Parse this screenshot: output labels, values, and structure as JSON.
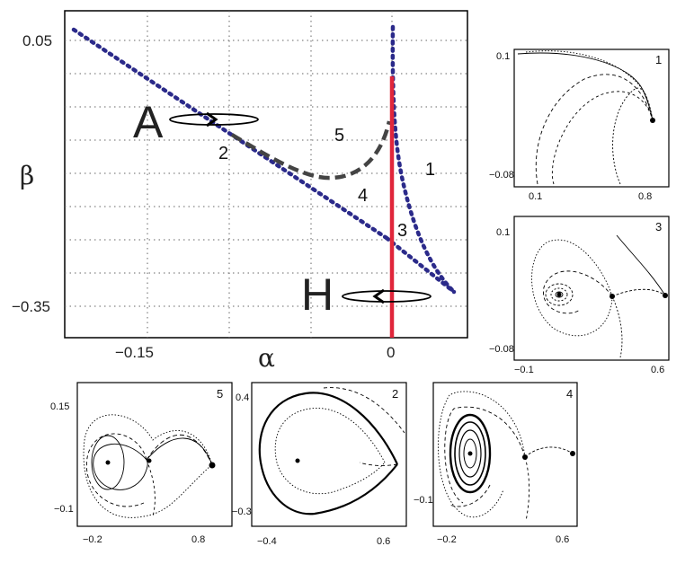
{
  "main": {
    "y_ticks": [
      "0.05",
      "−0.35"
    ],
    "x_ticks": [
      "−0.15",
      "0"
    ],
    "xlabel": "α",
    "ylabel": "β",
    "point_labels": {
      "A": "A",
      "H": "H"
    },
    "region_labels": [
      "1",
      "2",
      "3",
      "4",
      "5"
    ],
    "colors": {
      "bifurcation_dotted": "#2b2a8a",
      "hopf_line": "#e0263b",
      "dashed_curve": "#444444"
    }
  },
  "insets": [
    {
      "id": "1",
      "number": "1",
      "y_top": "0.1",
      "y_bottom": "−0.08",
      "x_left": "0.1",
      "x_right": "0.8"
    },
    {
      "id": "3",
      "number": "3",
      "y_top": "0.1",
      "y_bottom": "−0.08",
      "x_left": "−0.1",
      "x_right": "0.6"
    },
    {
      "id": "5",
      "number": "5",
      "y_top": "0.15",
      "y_bottom": "−0.1",
      "x_left": "−0.2",
      "x_right": "0.8"
    },
    {
      "id": "2",
      "number": "2",
      "y_top": "0.4",
      "y_bottom": "−0.3",
      "x_left": "−0.4",
      "x_right": "0.6"
    },
    {
      "id": "4",
      "number": "4",
      "y_top": "",
      "y_bottom": "−0.1",
      "x_left": "−0.2",
      "x_right": "0.6"
    }
  ]
}
